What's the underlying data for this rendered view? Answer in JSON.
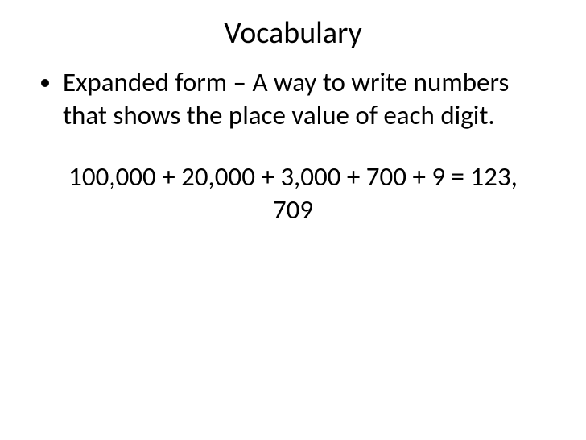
{
  "slide": {
    "title": "Vocabulary",
    "bullet": {
      "term": "Expanded form",
      "definition": "  – A way to write numbers that shows the place value of each digit."
    },
    "example_line1": "100,000 + 20,000 + 3,000 + 700 + 9 = 123,",
    "example_line2": "709"
  },
  "style": {
    "background_color": "#ffffff",
    "text_color": "#000000",
    "title_fontsize": 38,
    "body_fontsize": 33,
    "font_family": "Calibri"
  }
}
